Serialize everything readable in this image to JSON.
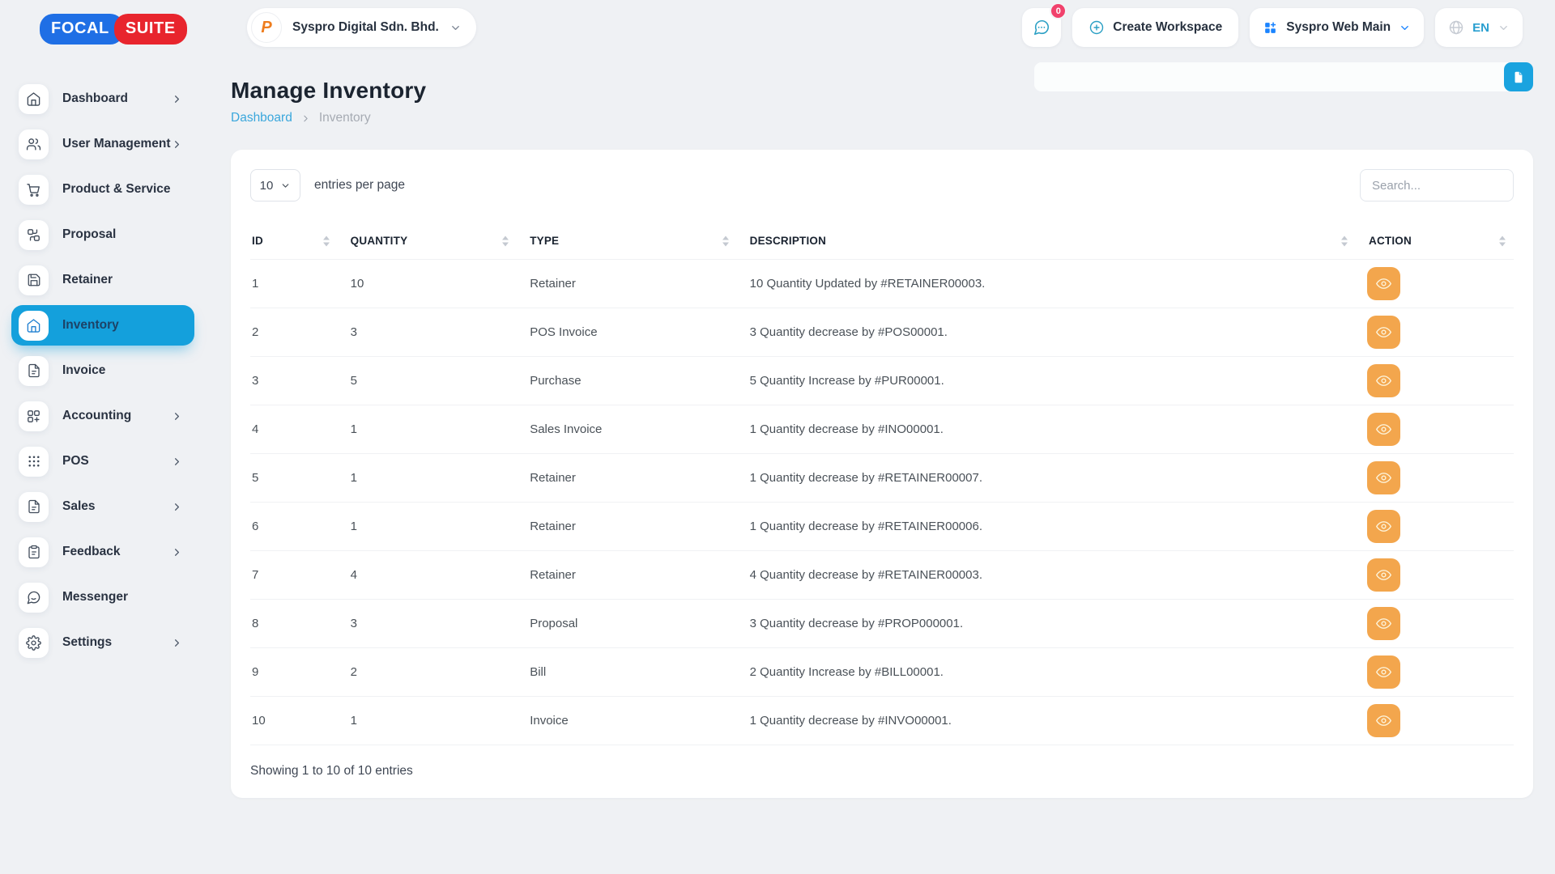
{
  "brand": {
    "logo_left": "FOCAL",
    "logo_right": "SUITE"
  },
  "header": {
    "workspace": {
      "name": "Syspro Digital Sdn. Bhd.",
      "avatar_text": "P"
    },
    "chat_badge": "0",
    "create_workspace_label": "Create Workspace",
    "app_selector_label": "Syspro Web Main",
    "language_label": "EN"
  },
  "sidebar": {
    "items": [
      {
        "label": "Dashboard",
        "icon": "home-icon",
        "expandable": true,
        "active": false
      },
      {
        "label": "User Management",
        "icon": "users-icon",
        "expandable": true,
        "active": false
      },
      {
        "label": "Product & Service",
        "icon": "cart-icon",
        "expandable": false,
        "active": false
      },
      {
        "label": "Proposal",
        "icon": "proposal-icon",
        "expandable": false,
        "active": false
      },
      {
        "label": "Retainer",
        "icon": "save-icon",
        "expandable": false,
        "active": false
      },
      {
        "label": "Inventory",
        "icon": "home-icon",
        "expandable": false,
        "active": true
      },
      {
        "label": "Invoice",
        "icon": "file-icon",
        "expandable": false,
        "active": false
      },
      {
        "label": "Accounting",
        "icon": "grid-plus-icon",
        "expandable": true,
        "active": false
      },
      {
        "label": "POS",
        "icon": "dots-grid-icon",
        "expandable": true,
        "active": false
      },
      {
        "label": "Sales",
        "icon": "file-icon",
        "expandable": true,
        "active": false
      },
      {
        "label": "Feedback",
        "icon": "clipboard-icon",
        "expandable": true,
        "active": false
      },
      {
        "label": "Messenger",
        "icon": "chat-icon",
        "expandable": false,
        "active": false
      },
      {
        "label": "Settings",
        "icon": "gear-icon",
        "expandable": true,
        "active": false
      }
    ]
  },
  "page": {
    "title": "Manage Inventory",
    "breadcrumb_home": "Dashboard",
    "breadcrumb_current": "Inventory",
    "export_button_icon": "document-icon"
  },
  "controls": {
    "page_size": "10",
    "entries_label": "entries per page",
    "search_placeholder": "Search..."
  },
  "table": {
    "columns": [
      "ID",
      "QUANTITY",
      "TYPE",
      "DESCRIPTION",
      "ACTION"
    ],
    "action_icon": "eye-icon",
    "rows": [
      {
        "id": "1",
        "quantity": "10",
        "type": "Retainer",
        "description": "10 Quantity Updated by #RETAINER00003."
      },
      {
        "id": "2",
        "quantity": "3",
        "type": "POS Invoice",
        "description": "3 Quantity decrease by #POS00001."
      },
      {
        "id": "3",
        "quantity": "5",
        "type": "Purchase",
        "description": "5 Quantity Increase by #PUR00001."
      },
      {
        "id": "4",
        "quantity": "1",
        "type": "Sales Invoice",
        "description": "1 Quantity decrease by #INO00001."
      },
      {
        "id": "5",
        "quantity": "1",
        "type": "Retainer",
        "description": "1 Quantity decrease by #RETAINER00007."
      },
      {
        "id": "6",
        "quantity": "1",
        "type": "Retainer",
        "description": "1 Quantity decrease by #RETAINER00006."
      },
      {
        "id": "7",
        "quantity": "4",
        "type": "Retainer",
        "description": "4 Quantity decrease by #RETAINER00003."
      },
      {
        "id": "8",
        "quantity": "3",
        "type": "Proposal",
        "description": "3 Quantity decrease by #PROP000001."
      },
      {
        "id": "9",
        "quantity": "2",
        "type": "Bill",
        "description": "2 Quantity Increase by #BILL00001."
      },
      {
        "id": "10",
        "quantity": "1",
        "type": "Invoice",
        "description": "1 Quantity decrease by #INVO00001."
      }
    ],
    "footer": "Showing 1 to 10 of 10 entries"
  },
  "colors": {
    "active_nav": "#14a0dc",
    "link": "#3aa7dc",
    "badge": "#f1416c",
    "action_button": "#f3a64d",
    "logo_blue": "#1f6fe5",
    "logo_red": "#e8252d",
    "export_button": "#1aa3df"
  }
}
